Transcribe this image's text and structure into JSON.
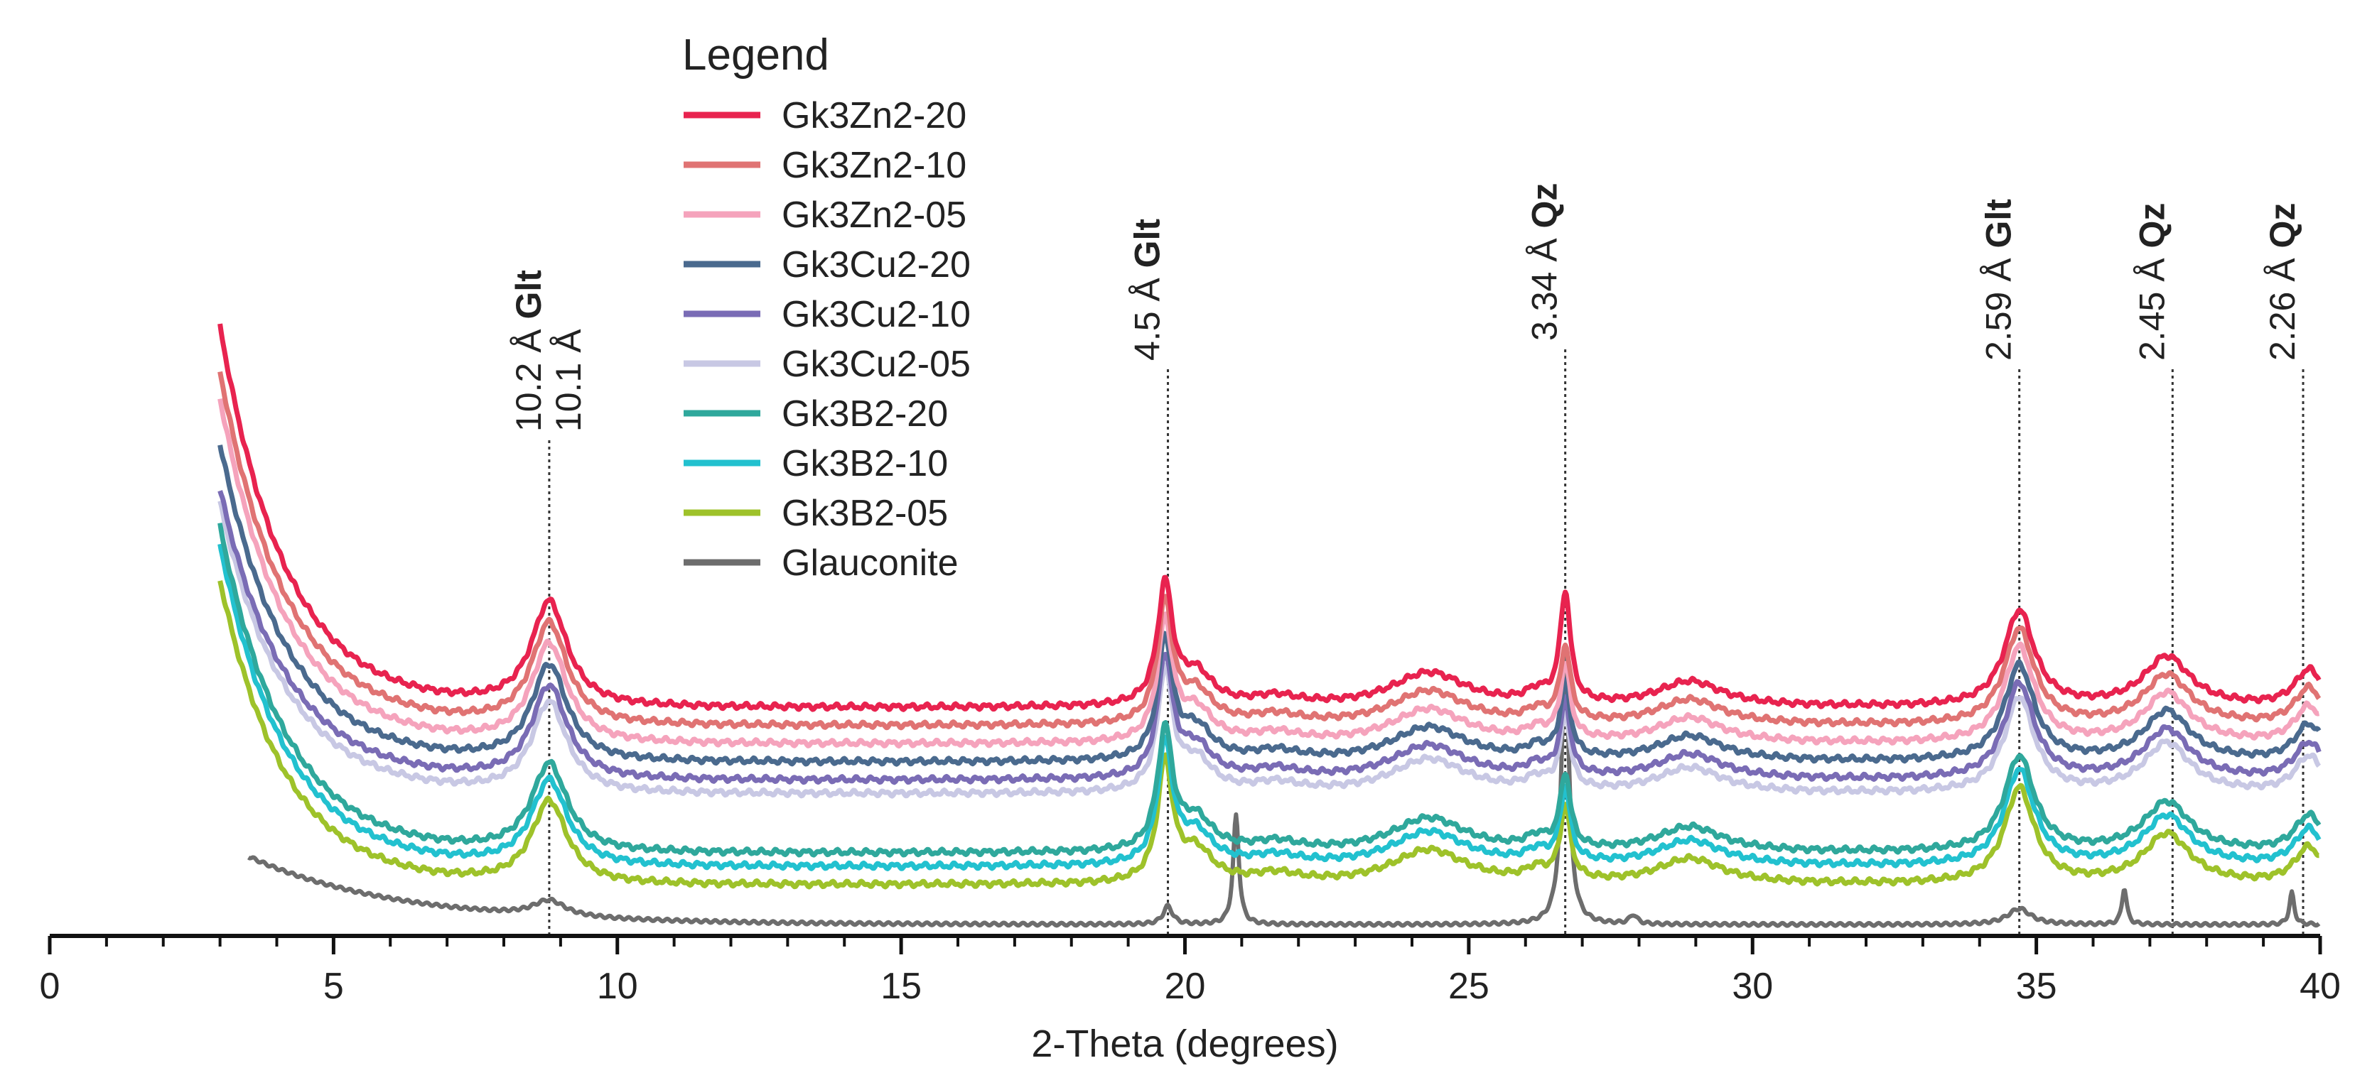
{
  "chart_data": {
    "type": "line",
    "title": "",
    "xlabel": "2-Theta (degrees)",
    "ylabel": "",
    "xlim": [
      0,
      40
    ],
    "x_ticks": [
      "0",
      "5",
      "10",
      "15",
      "20",
      "25",
      "30",
      "35",
      "40"
    ],
    "legend": {
      "title": "Legend",
      "placement": "top-center"
    },
    "series": [
      {
        "name": "Gk3Zn2-20",
        "color": "#e8234f",
        "start": 3.0,
        "start_level": 13.2,
        "baseline": 4.8
      },
      {
        "name": "Gk3Zn2-10",
        "color": "#e07373",
        "start": 3.0,
        "start_level": 12.2,
        "baseline": 4.4
      },
      {
        "name": "Gk3Zn2-05",
        "color": "#f5a3bc",
        "start": 3.0,
        "start_level": 11.6,
        "baseline": 4.0
      },
      {
        "name": "Gk3Cu2-20",
        "color": "#4a6a8e",
        "start": 3.0,
        "start_level": 10.6,
        "baseline": 3.6
      },
      {
        "name": "Gk3Cu2-10",
        "color": "#7a6cb5",
        "start": 3.0,
        "start_level": 9.6,
        "baseline": 3.2
      },
      {
        "name": "Gk3Cu2-05",
        "color": "#c8c8e4",
        "start": 3.0,
        "start_level": 9.3,
        "baseline": 2.9
      },
      {
        "name": "Gk3B2-20",
        "color": "#2fa89c",
        "start": 3.0,
        "start_level": 8.8,
        "baseline": 1.6
      },
      {
        "name": "Gk3B2-10",
        "color": "#22c1cf",
        "start": 3.0,
        "start_level": 8.4,
        "baseline": 1.3
      },
      {
        "name": "Gk3B2-05",
        "color": "#9ec22a",
        "start": 3.0,
        "start_level": 7.6,
        "baseline": 0.9
      },
      {
        "name": "Glauconite",
        "color": "#6d6d6d",
        "start": 3.5,
        "start_level": 1.5,
        "baseline": 0.1
      }
    ],
    "peaks": [
      {
        "two_theta": 8.8,
        "label": "10.2 Å",
        "mineral": "Glt",
        "label2": "10.1 Å"
      },
      {
        "two_theta": 19.7,
        "label": "4.5 Å",
        "mineral": "Glt"
      },
      {
        "two_theta": 26.7,
        "label": "3.34 Å",
        "mineral": "Qz"
      },
      {
        "two_theta": 34.7,
        "label": "2.59 Å",
        "mineral": "Glt"
      },
      {
        "two_theta": 37.4,
        "label": "2.45 Å",
        "mineral": "Qz"
      },
      {
        "two_theta": 39.7,
        "label": "2.26 Å",
        "mineral": "Qz"
      }
    ]
  }
}
